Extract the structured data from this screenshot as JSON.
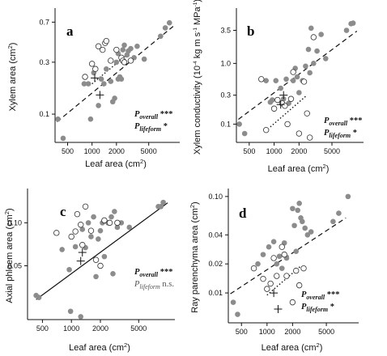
{
  "chart_data": [
    {
      "type": "scatter",
      "panel_letter": "a",
      "xlabel": "Leaf area (cm",
      "xlabel_sup": "2",
      "xlabel_end": ")",
      "ylabel": "Xylem area (cm",
      "ylabel_sup": "2",
      "ylabel_end": ")",
      "x_scale": "log",
      "y_scale": "log",
      "xlim": [
        350,
        11000
      ],
      "ylim": [
        0.055,
        0.88
      ],
      "x_ticks": [
        500,
        1000,
        2000,
        5000
      ],
      "x_tick_labels": [
        "500",
        "1000",
        "2000",
        "5000"
      ],
      "y_ticks": [
        0.1,
        0.3,
        0.7
      ],
      "y_tick_labels": [
        "0.1",
        "0.3",
        "0.7"
      ],
      "stats": [
        {
          "symbol": "P",
          "subscript": "overall",
          "significance": "***"
        },
        {
          "symbol": "P",
          "subscript": "lifeform",
          "significance": "*"
        }
      ],
      "fits": [
        {
          "style": "dashed",
          "x": [
            370,
            10000
          ],
          "y": [
            0.085,
            0.64
          ]
        },
        {
          "style": "dotted",
          "x": [
            1000,
            2800
          ],
          "y": [
            0.19,
            0.36
          ]
        }
      ],
      "crosses": [
        [
          1080,
          0.215
        ],
        [
          1250,
          0.15
        ]
      ],
      "series": [
        {
          "marker": "filled",
          "color": "#8c8c8c",
          "points": [
            [
              380,
              0.09
            ],
            [
              440,
              0.06
            ],
            [
              800,
              0.19
            ],
            [
              900,
              0.19
            ],
            [
              960,
              0.09
            ],
            [
              1050,
              0.24
            ],
            [
              1200,
              0.12
            ],
            [
              1300,
              0.21
            ],
            [
              1400,
              0.19
            ],
            [
              1500,
              0.26
            ],
            [
              1700,
              0.2
            ],
            [
              1800,
              0.13
            ],
            [
              1900,
              0.14
            ],
            [
              2000,
              0.3
            ],
            [
              2100,
              0.36
            ],
            [
              2100,
              0.21
            ],
            [
              2200,
              0.22
            ],
            [
              2300,
              0.21
            ],
            [
              2400,
              0.39
            ],
            [
              2500,
              0.43
            ],
            [
              2700,
              0.35
            ],
            [
              2800,
              0.38
            ],
            [
              3000,
              0.4
            ],
            [
              3300,
              0.33
            ],
            [
              3600,
              0.42
            ],
            [
              4400,
              0.32
            ],
            [
              7000,
              0.52
            ],
            [
              8000,
              0.62
            ],
            [
              9000,
              0.69
            ]
          ]
        },
        {
          "marker": "open",
          "color": "#333333",
          "points": [
            [
              820,
              0.22
            ],
            [
              1000,
              0.29
            ],
            [
              1100,
              0.26
            ],
            [
              1200,
              0.42
            ],
            [
              1350,
              0.39
            ],
            [
              1450,
              0.45
            ],
            [
              1500,
              0.47
            ],
            [
              1700,
              0.31
            ],
            [
              2000,
              0.39
            ],
            [
              2300,
              0.33
            ],
            [
              2400,
              0.31
            ],
            [
              2500,
              0.3
            ],
            [
              3000,
              0.31
            ]
          ]
        }
      ]
    },
    {
      "type": "scatter",
      "panel_letter": "b",
      "xlabel": "Leaf area (cm",
      "xlabel_sup": "2",
      "xlabel_end": ")",
      "ylabel": "Xylem conductivity (10",
      "ylabel_sup": "-4",
      "ylabel_mid": " kg m s",
      "ylabel_sup2": "-1",
      "ylabel_mid2": " MPa",
      "ylabel_sup3": "-1",
      "ylabel_end": ")",
      "x_scale": "log",
      "y_scale": "log",
      "xlim": [
        350,
        11000
      ],
      "ylim": [
        0.05,
        7.2
      ],
      "x_ticks": [
        500,
        1000,
        2000,
        5000
      ],
      "x_tick_labels": [
        "500",
        "1000",
        "2000",
        "5000"
      ],
      "y_ticks": [
        0.1,
        0.3,
        1.0,
        3.5
      ],
      "y_tick_labels": [
        "0.1",
        "0.3",
        "1.0",
        "3.5"
      ],
      "stats": [
        {
          "symbol": "P",
          "subscript": "overall",
          "significance": "***"
        },
        {
          "symbol": "P",
          "subscript": "lifeform",
          "significance": "*"
        }
      ],
      "fits": [
        {
          "style": "dashed",
          "x": [
            370,
            10000
          ],
          "y": [
            0.12,
            3.4
          ]
        },
        {
          "style": "dotted",
          "x": [
            900,
            2500
          ],
          "y": [
            0.09,
            0.3
          ]
        }
      ],
      "crosses": [
        [
          1200,
          0.21
        ],
        [
          1300,
          0.3
        ]
      ],
      "series": [
        {
          "marker": "filled",
          "color": "#8c8c8c",
          "points": [
            [
              380,
              0.1
            ],
            [
              440,
              0.07
            ],
            [
              800,
              0.52
            ],
            [
              900,
              0.23
            ],
            [
              950,
              0.25
            ],
            [
              1050,
              0.52
            ],
            [
              1200,
              0.39
            ],
            [
              1300,
              0.26
            ],
            [
              1400,
              0.55
            ],
            [
              1500,
              0.22
            ],
            [
              1700,
              0.52
            ],
            [
              1800,
              0.83
            ],
            [
              1900,
              0.6
            ],
            [
              2000,
              0.33
            ],
            [
              2200,
              0.52
            ],
            [
              2400,
              0.9
            ],
            [
              2600,
              1.7
            ],
            [
              2700,
              0.7
            ],
            [
              2800,
              3.8
            ],
            [
              3000,
              1.0
            ],
            [
              3300,
              1.6
            ],
            [
              3700,
              3.0
            ],
            [
              4200,
              1.2
            ],
            [
              7500,
              3.5
            ],
            [
              8500,
              4.5
            ],
            [
              9000,
              4.6
            ]
          ]
        },
        {
          "marker": "open",
          "color": "#333333",
          "points": [
            [
              700,
              0.55
            ],
            [
              800,
              0.08
            ],
            [
              1000,
              0.18
            ],
            [
              1100,
              0.25
            ],
            [
              1250,
              0.22
            ],
            [
              1350,
              0.2
            ],
            [
              1450,
              0.1
            ],
            [
              1600,
              0.26
            ],
            [
              1700,
              0.72
            ],
            [
              2000,
              0.07
            ],
            [
              2300,
              0.5
            ],
            [
              2500,
              0.15
            ],
            [
              2700,
              0.06
            ],
            [
              3000,
              2.7
            ]
          ]
        }
      ]
    },
    {
      "type": "scatter",
      "panel_letter": "c",
      "xlabel": "Leaf area (cm",
      "xlabel_sup": "2",
      "xlabel_end": ")",
      "ylabel": "Axial phloem area (cm",
      "ylabel_sup": "2",
      "ylabel_end": ")",
      "x_scale": "log",
      "y_scale": "log",
      "xlim": [
        350,
        11000
      ],
      "ylim": [
        0.021,
        0.165
      ],
      "x_ticks": [
        500,
        1000,
        2000,
        5000
      ],
      "x_tick_labels": [
        "500",
        "1000",
        "2000",
        "5000"
      ],
      "y_ticks": [
        0.05,
        0.1
      ],
      "y_tick_labels": [
        "0.05",
        "0.10"
      ],
      "stats": [
        {
          "symbol": "P",
          "subscript": "overall",
          "significance": "***"
        },
        {
          "symbol": "P",
          "subscript": "lifeform",
          "significance": "n.s."
        }
      ],
      "fits": [
        {
          "style": "solid",
          "x": [
            430,
            10000
          ],
          "y": [
            0.029,
            0.138
          ]
        }
      ],
      "crosses": [
        [
          1250,
          0.054
        ],
        [
          1300,
          0.062
        ]
      ],
      "series": [
        {
          "marker": "filled",
          "color": "#8c8c8c",
          "points": [
            [
              430,
              0.031
            ],
            [
              460,
              0.03
            ],
            [
              800,
              0.065
            ],
            [
              950,
              0.047
            ],
            [
              980,
              0.024
            ],
            [
              1100,
              0.068
            ],
            [
              1250,
              0.022
            ],
            [
              1300,
              0.09
            ],
            [
              1400,
              0.067
            ],
            [
              1500,
              0.1
            ],
            [
              1600,
              0.08
            ],
            [
              1700,
              0.11
            ],
            [
              1800,
              0.042
            ],
            [
              1900,
              0.077
            ],
            [
              2000,
              0.088
            ],
            [
              2100,
              0.1
            ],
            [
              2200,
              0.058
            ],
            [
              2400,
              0.1
            ],
            [
              2600,
              0.11
            ],
            [
              2700,
              0.044
            ],
            [
              2800,
              0.12
            ],
            [
              3000,
              0.093
            ],
            [
              3300,
              0.1
            ],
            [
              4000,
              0.093
            ],
            [
              8000,
              0.13
            ],
            [
              8500,
              0.13
            ],
            [
              9000,
              0.139
            ]
          ]
        },
        {
          "marker": "open",
          "color": "#333333",
          "points": [
            [
              700,
              0.085
            ],
            [
              1000,
              0.08
            ],
            [
              1100,
              0.087
            ],
            [
              1150,
              0.115
            ],
            [
              1250,
              0.097
            ],
            [
              1300,
              0.07
            ],
            [
              1400,
              0.13
            ],
            [
              1600,
              0.088
            ],
            [
              1800,
              0.055
            ],
            [
              2000,
              0.05
            ],
            [
              2200,
              0.104
            ],
            [
              2500,
              0.1
            ],
            [
              3000,
              0.1
            ]
          ]
        }
      ]
    },
    {
      "type": "scatter",
      "panel_letter": "d",
      "xlabel": "Leaf area (cm",
      "xlabel_sup": "2",
      "xlabel_end": ")",
      "ylabel": "Ray parenchyma area (cm",
      "ylabel_sup": "2",
      "ylabel_end": ")",
      "x_scale": "log",
      "y_scale": "log",
      "xlim": [
        350,
        11000
      ],
      "ylim": [
        0.0049,
        0.112
      ],
      "x_ticks": [
        500,
        1000,
        2000,
        5000
      ],
      "x_tick_labels": [
        "500",
        "1000",
        "2000",
        "5000"
      ],
      "y_ticks": [
        0.01,
        0.02,
        0.04,
        0.1
      ],
      "y_tick_labels": [
        "0.01",
        "0.02",
        "0.04",
        "0.10"
      ],
      "stats": [
        {
          "symbol": "P",
          "subscript": "overall",
          "significance": "***"
        },
        {
          "symbol": "P",
          "subscript": "lifeform",
          "significance": "*"
        }
      ],
      "fits": [
        {
          "style": "dashed",
          "x": [
            370,
            8500
          ],
          "y": [
            0.0098,
            0.06
          ]
        },
        {
          "style": "dotted",
          "x": [
            1000,
            2500
          ],
          "y": [
            0.0095,
            0.019
          ]
        }
      ],
      "crosses": [
        [
          1200,
          0.01
        ],
        [
          1350,
          0.0068
        ]
      ],
      "series": [
        {
          "marker": "filled",
          "color": "#8c8c8c",
          "points": [
            [
              400,
              0.008
            ],
            [
              450,
              0.006
            ],
            [
              780,
              0.02
            ],
            [
              900,
              0.025
            ],
            [
              1050,
              0.03
            ],
            [
              1200,
              0.034
            ],
            [
              1300,
              0.02
            ],
            [
              1400,
              0.024
            ],
            [
              1500,
              0.018
            ],
            [
              1600,
              0.033
            ],
            [
              1700,
              0.023
            ],
            [
              2000,
              0.075
            ],
            [
              2100,
              0.05
            ],
            [
              2200,
              0.027
            ],
            [
              2300,
              0.072
            ],
            [
              2400,
              0.085
            ],
            [
              2500,
              0.06
            ],
            [
              2600,
              0.055
            ],
            [
              2800,
              0.047
            ],
            [
              3000,
              0.04
            ],
            [
              3300,
              0.043
            ],
            [
              6000,
              0.055
            ],
            [
              7000,
              0.067
            ],
            [
              9000,
              0.1
            ]
          ]
        },
        {
          "marker": "open",
          "color": "#333333",
          "points": [
            [
              700,
              0.018
            ],
            [
              900,
              0.014
            ],
            [
              1000,
              0.011
            ],
            [
              1100,
              0.0125
            ],
            [
              1200,
              0.023
            ],
            [
              1300,
              0.015
            ],
            [
              1500,
              0.03
            ],
            [
              1600,
              0.025
            ],
            [
              1700,
              0.015
            ],
            [
              2000,
              0.008
            ],
            [
              2200,
              0.017
            ],
            [
              2400,
              0.012
            ],
            [
              2700,
              0.018
            ]
          ]
        }
      ]
    }
  ]
}
